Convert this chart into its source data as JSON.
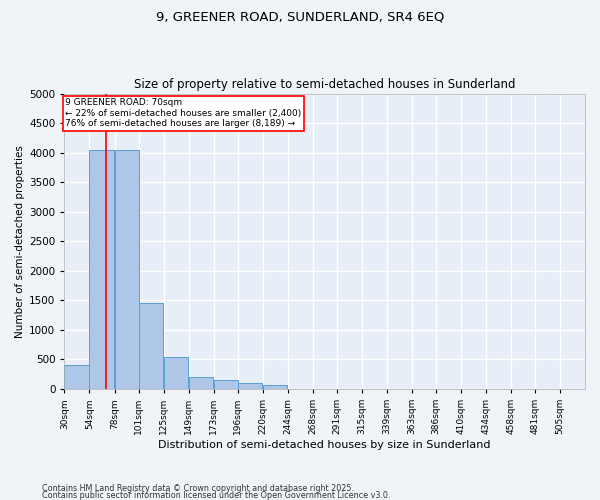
{
  "title1": "9, GREENER ROAD, SUNDERLAND, SR4 6EQ",
  "title2": "Size of property relative to semi-detached houses in Sunderland",
  "xlabel": "Distribution of semi-detached houses by size in Sunderland",
  "ylabel": "Number of semi-detached properties",
  "categories": [
    "30sqm",
    "54sqm",
    "78sqm",
    "101sqm",
    "125sqm",
    "149sqm",
    "173sqm",
    "196sqm",
    "220sqm",
    "244sqm",
    "268sqm",
    "291sqm",
    "315sqm",
    "339sqm",
    "363sqm",
    "386sqm",
    "410sqm",
    "434sqm",
    "458sqm",
    "481sqm",
    "505sqm"
  ],
  "bin_edges": [
    30,
    54,
    78,
    101,
    125,
    149,
    173,
    196,
    220,
    244,
    268,
    291,
    315,
    339,
    363,
    386,
    410,
    434,
    458,
    481,
    505
  ],
  "bin_width": 24,
  "values": [
    400,
    4050,
    4050,
    1450,
    550,
    200,
    150,
    100,
    70,
    0,
    0,
    0,
    0,
    0,
    0,
    0,
    0,
    0,
    0,
    0,
    0
  ],
  "bar_color": "#aec6e8",
  "bar_edge_color": "#5a9fd4",
  "bg_color": "#e8eef7",
  "grid_color": "#ffffff",
  "fig_bg_color": "#f0f4f8",
  "red_line_x": 70,
  "property_label": "9 GREENER ROAD: 70sqm",
  "annotation_line1": "← 22% of semi-detached houses are smaller (2,400)",
  "annotation_line2": "76% of semi-detached houses are larger (8,189) →",
  "ylim": [
    0,
    5000
  ],
  "yticks": [
    0,
    500,
    1000,
    1500,
    2000,
    2500,
    3000,
    3500,
    4000,
    4500,
    5000
  ],
  "footnote1": "Contains HM Land Registry data © Crown copyright and database right 2025.",
  "footnote2": "Contains public sector information licensed under the Open Government Licence v3.0."
}
